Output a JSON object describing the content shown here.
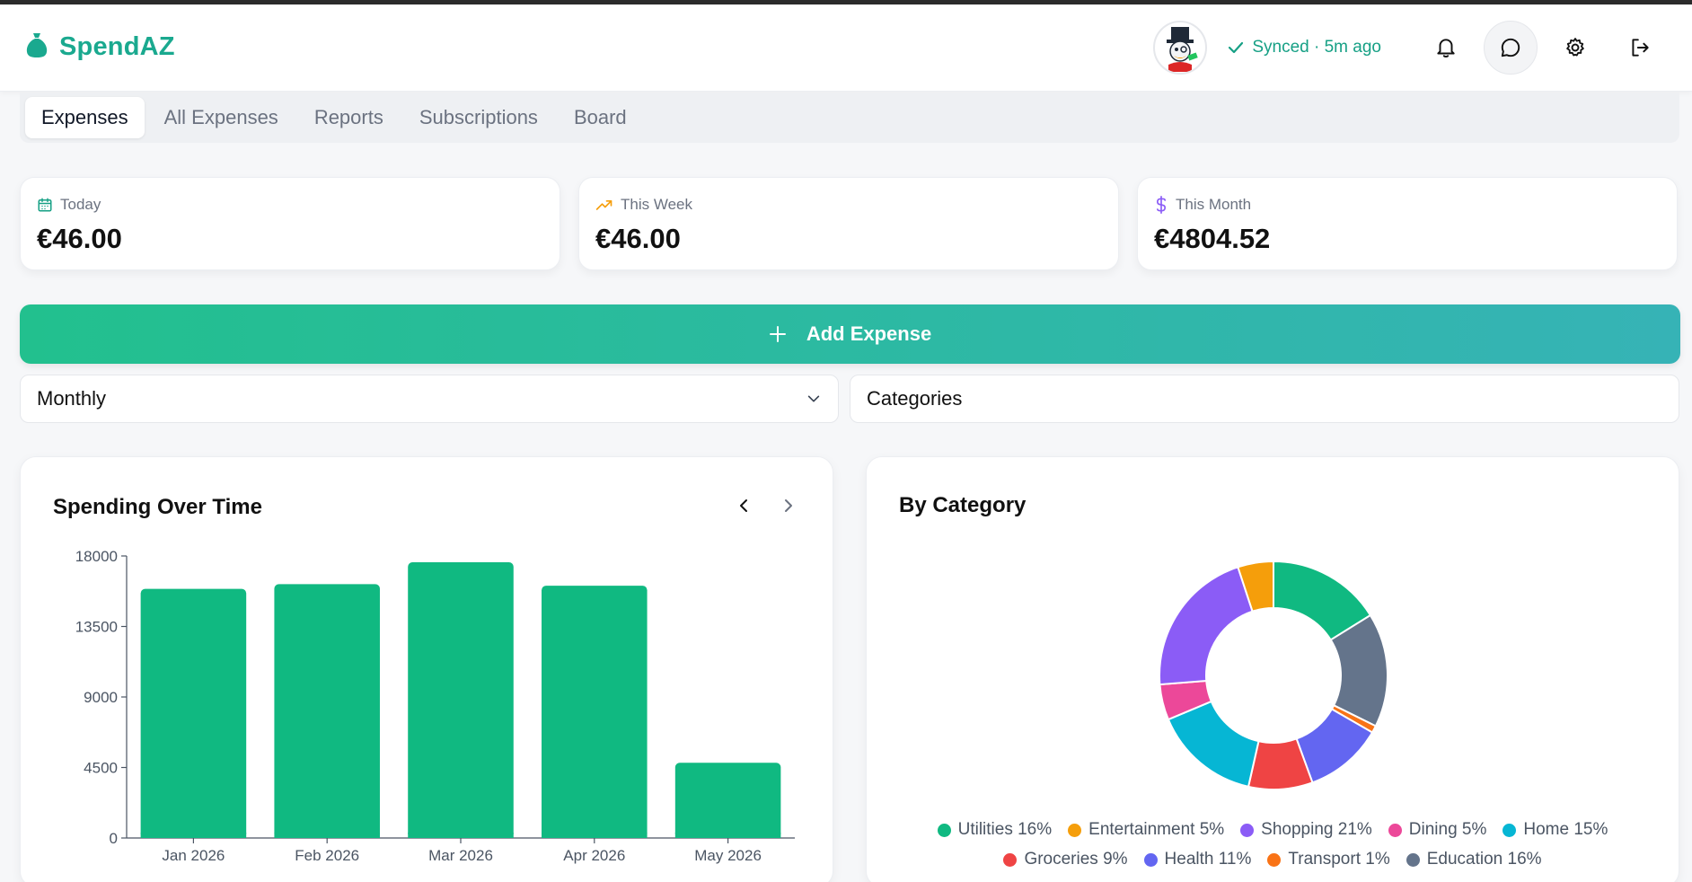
{
  "app": {
    "name": "SpendAZ",
    "sync_status": "Synced · 5m ago"
  },
  "tabs": [
    {
      "label": "Expenses",
      "active": true
    },
    {
      "label": "All Expenses",
      "active": false
    },
    {
      "label": "Reports",
      "active": false
    },
    {
      "label": "Subscriptions",
      "active": false
    },
    {
      "label": "Board",
      "active": false
    }
  ],
  "stats": {
    "today": {
      "label": "Today",
      "value": "€46.00",
      "icon": "calendar-icon",
      "color": "#16a085"
    },
    "week": {
      "label": "This Week",
      "value": "€46.00",
      "icon": "trending-up-icon",
      "color": "#f59e0b"
    },
    "month": {
      "label": "This Month",
      "value": "€4804.52",
      "icon": "dollar-icon",
      "color": "#8b5cf6"
    }
  },
  "add_expense": {
    "label": "Add Expense"
  },
  "filters": {
    "period": "Monthly",
    "categories": "Categories"
  },
  "spending_card": {
    "title": "Spending Over Time"
  },
  "category_card": {
    "title": "By Category"
  },
  "colors": {
    "accent": "#10b981",
    "brand": "#1aa98f"
  },
  "chart_data": [
    {
      "type": "bar",
      "title": "Spending Over Time",
      "categories": [
        "Jan 2026",
        "Feb 2026",
        "Mar 2026",
        "Apr 2026",
        "May 2026"
      ],
      "values": [
        15900,
        16200,
        17600,
        16100,
        4800
      ],
      "yticks": [
        "18000",
        "13500",
        "9000",
        "4500",
        "0"
      ],
      "ylim": [
        0,
        18000
      ],
      "color": "#10b981",
      "grid": false
    },
    {
      "type": "pie",
      "donut": true,
      "title": "By Category",
      "legend_position": "bottom",
      "slices": [
        {
          "label": "Utilities",
          "percent": 16,
          "color": "#10b981"
        },
        {
          "label": "Education",
          "percent": 16,
          "color": "#64748b"
        },
        {
          "label": "Transport",
          "percent": 1,
          "color": "#f97316"
        },
        {
          "label": "Health",
          "percent": 11,
          "color": "#6366f1"
        },
        {
          "label": "Groceries",
          "percent": 9,
          "color": "#ef4444"
        },
        {
          "label": "Home",
          "percent": 15,
          "color": "#06b6d4"
        },
        {
          "label": "Dining",
          "percent": 5,
          "color": "#ec4899"
        },
        {
          "label": "Shopping",
          "percent": 21,
          "color": "#8b5cf6"
        },
        {
          "label": "Entertainment",
          "percent": 5,
          "color": "#f59e0b"
        }
      ],
      "legend": [
        [
          {
            "text": "Utilities 16%",
            "color": "#10b981"
          },
          {
            "text": "Entertainment 5%",
            "color": "#f59e0b"
          },
          {
            "text": "Shopping 21%",
            "color": "#8b5cf6"
          },
          {
            "text": "Dining 5%",
            "color": "#ec4899"
          },
          {
            "text": "Home 15%",
            "color": "#06b6d4"
          }
        ],
        [
          {
            "text": "Groceries 9%",
            "color": "#ef4444"
          },
          {
            "text": "Health 11%",
            "color": "#6366f1"
          },
          {
            "text": "Transport 1%",
            "color": "#f97316"
          },
          {
            "text": "Education 16%",
            "color": "#64748b"
          }
        ]
      ]
    }
  ]
}
